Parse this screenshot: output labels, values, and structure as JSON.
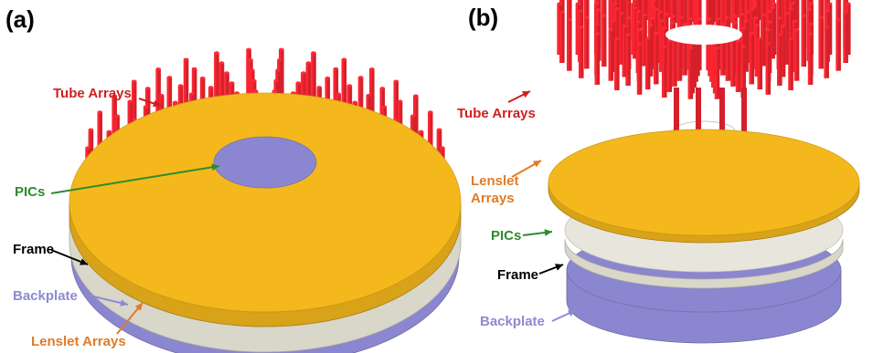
{
  "panels": {
    "a": {
      "label": "(a)",
      "callouts": {
        "tube_arrays": "Tube Arrays",
        "pics": "PICs",
        "frame": "Frame",
        "backplate": "Backplate",
        "lenslet_arrays": "Lenslet Arrays"
      }
    },
    "b": {
      "label": "(b)",
      "callouts": {
        "tube_arrays": "Tube Arrays",
        "lenslet_arrays_line1": "Lenslet",
        "lenslet_arrays_line2": "Arrays",
        "pics": "PICs",
        "frame": "Frame",
        "backplate": "Backplate"
      }
    }
  },
  "colors": {
    "tube_arrays": "#d4202a",
    "lenslet_arrays": "#f5b81c",
    "pics": "#1f9a3c",
    "frame": "#d9d7c9",
    "backplate": "#8a86cf",
    "label_tube": "#d11f1f",
    "label_lenslet": "#e07b28",
    "label_pics": "#2e8b2e",
    "label_frame": "#000000",
    "label_backplate": "#8e8ad0"
  }
}
